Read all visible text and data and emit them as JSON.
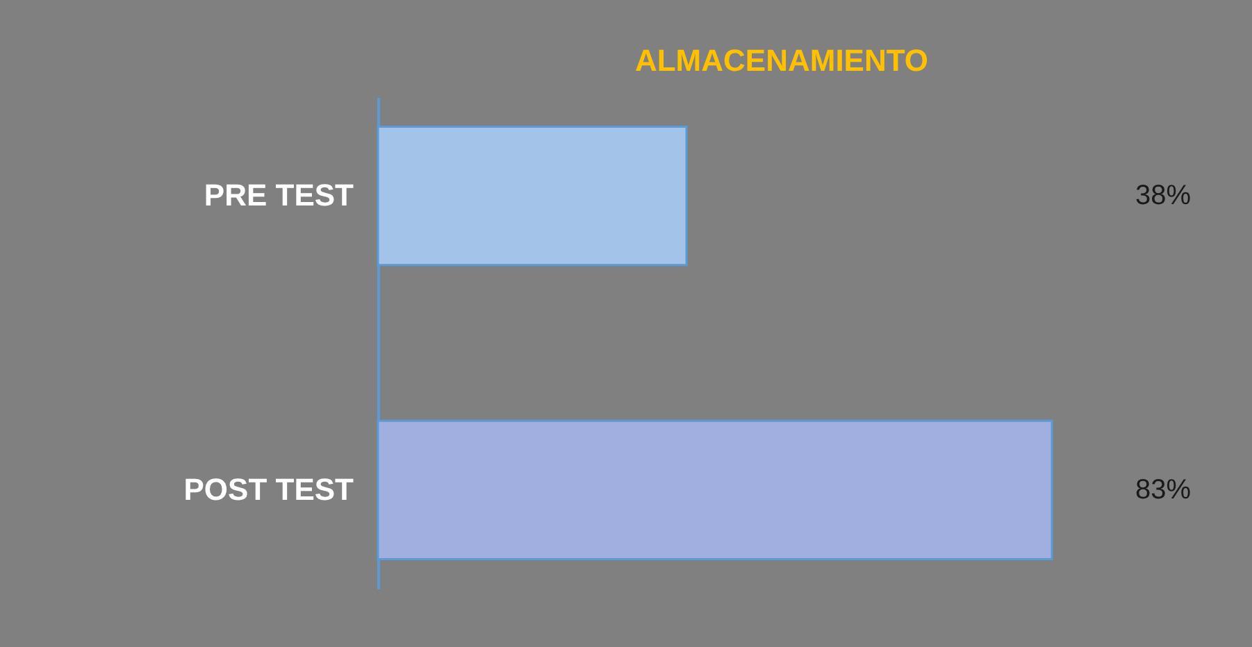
{
  "chart_data": {
    "type": "bar",
    "orientation": "horizontal",
    "title": "ALMACENAMIENTO",
    "categories": [
      "PRE  TEST",
      "POST TEST"
    ],
    "values": [
      38,
      83
    ],
    "colors": [
      "#a3c4e8",
      "#a0aee0"
    ],
    "value_labels": [
      "38%",
      "83%"
    ]
  }
}
